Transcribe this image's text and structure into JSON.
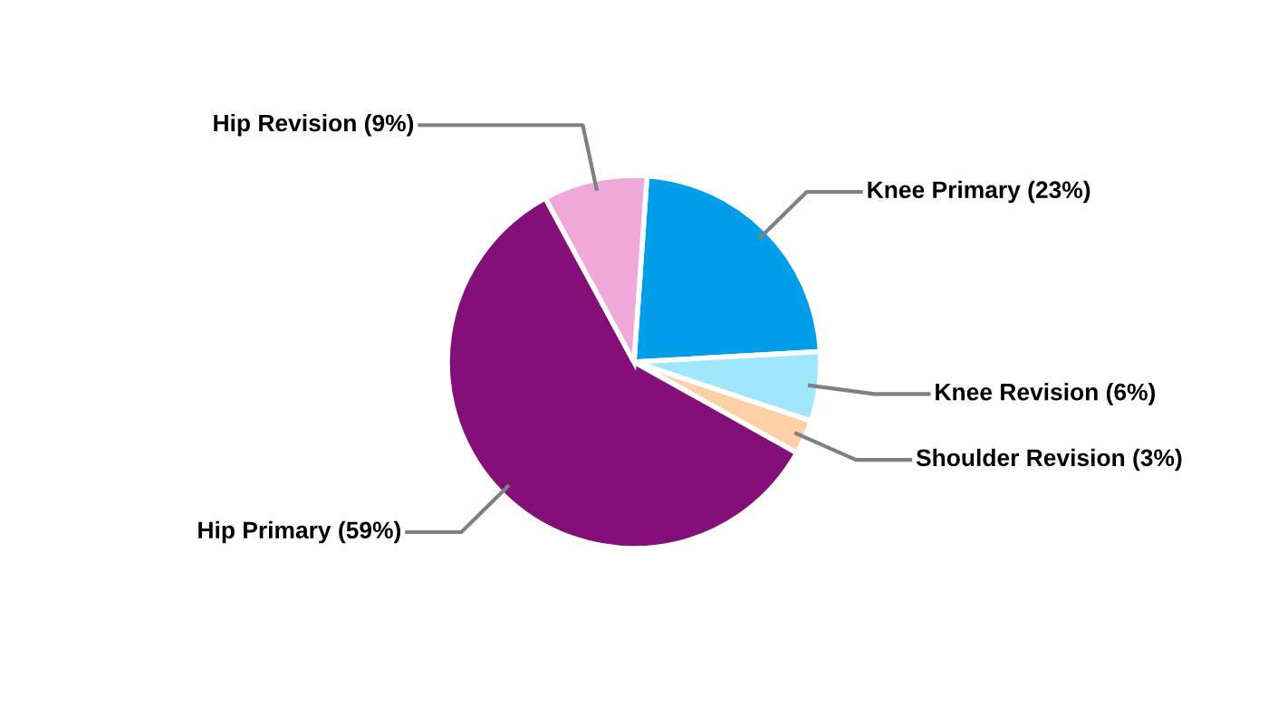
{
  "chart_data": {
    "type": "pie",
    "categories": [
      "Knee Primary (23%)",
      "Knee Revision (6%)",
      "Shoulder Revision (3%)",
      "Hip Primary (59%)",
      "Hip Revision (9%)"
    ],
    "values": [
      23,
      6,
      3,
      59,
      9
    ],
    "colors": [
      "#009ee8",
      "#a0e6fc",
      "#fdd0a8",
      "#850f78",
      "#f0a8d8"
    ],
    "legend": false
  }
}
